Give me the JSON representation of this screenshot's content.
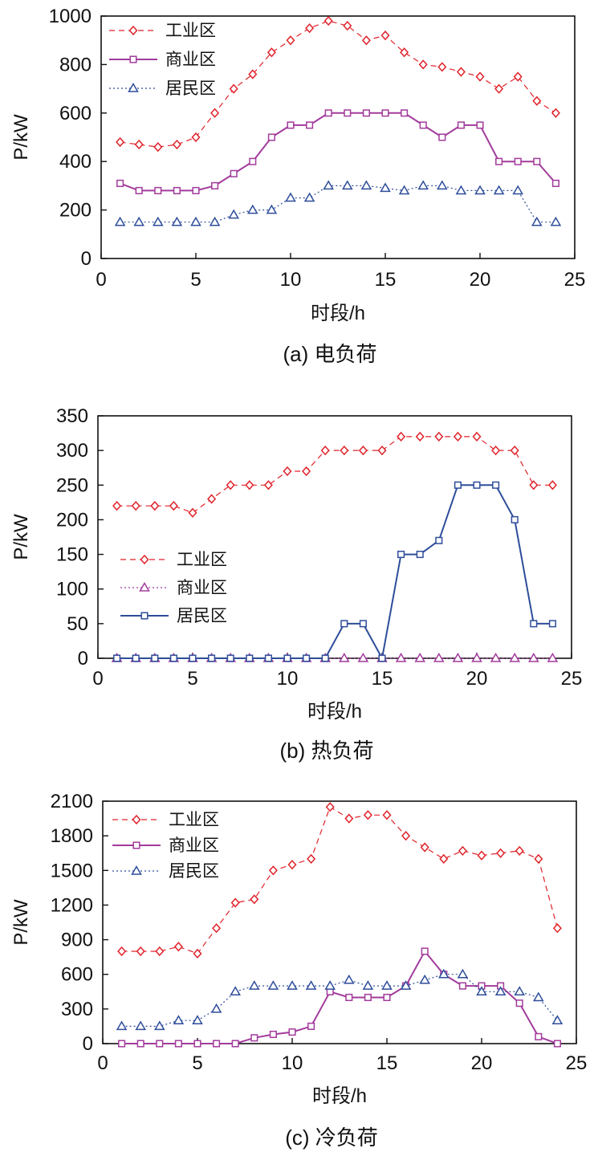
{
  "colors": {
    "industrial": "#e0222a",
    "commercial": "#a23b9c",
    "residential": "#2e4d9a",
    "axis": "#111111"
  },
  "chart_data": [
    {
      "type": "line",
      "caption": "(a) 电负荷",
      "xlabel": "时段/h",
      "ylabel": "P/kW",
      "xlim": [
        0,
        25
      ],
      "ylim": [
        0,
        1000
      ],
      "xticks": [
        0,
        5,
        10,
        15,
        20,
        25
      ],
      "yticks": [
        0,
        200,
        400,
        600,
        800,
        1000
      ],
      "legend_position": "top-left",
      "x": [
        1,
        2,
        3,
        4,
        5,
        6,
        7,
        8,
        9,
        10,
        11,
        12,
        13,
        14,
        15,
        16,
        17,
        18,
        19,
        20,
        21,
        22,
        23,
        24
      ],
      "series": [
        {
          "name": "工业区",
          "key": "industrial",
          "marker": "diamond",
          "line": "dashed",
          "values": [
            480,
            470,
            460,
            470,
            500,
            600,
            700,
            760,
            850,
            900,
            950,
            980,
            960,
            900,
            920,
            850,
            800,
            790,
            770,
            750,
            700,
            750,
            650,
            600
          ]
        },
        {
          "name": "商业区",
          "key": "commercial",
          "marker": "square",
          "line": "solid",
          "values": [
            310,
            280,
            280,
            280,
            280,
            300,
            350,
            400,
            500,
            550,
            550,
            600,
            600,
            600,
            600,
            600,
            550,
            500,
            550,
            550,
            400,
            400,
            400,
            310
          ]
        },
        {
          "name": "居民区",
          "key": "residential",
          "marker": "triangle",
          "line": "dotted",
          "values": [
            150,
            150,
            150,
            150,
            150,
            150,
            180,
            200,
            200,
            250,
            250,
            300,
            300,
            300,
            290,
            280,
            300,
            300,
            280,
            280,
            280,
            280,
            150,
            150
          ]
        }
      ]
    },
    {
      "type": "line",
      "caption": "(b) 热负荷",
      "xlabel": "时段/h",
      "ylabel": "P/kW",
      "xlim": [
        0,
        25
      ],
      "ylim": [
        0,
        350
      ],
      "xticks": [
        0,
        5,
        10,
        15,
        20,
        25
      ],
      "yticks": [
        0,
        50,
        100,
        150,
        200,
        250,
        300,
        350
      ],
      "legend_position": "middle-left",
      "x": [
        1,
        2,
        3,
        4,
        5,
        6,
        7,
        8,
        9,
        10,
        11,
        12,
        13,
        14,
        15,
        16,
        17,
        18,
        19,
        20,
        21,
        22,
        23,
        24
      ],
      "series": [
        {
          "name": "工业区",
          "key": "industrial",
          "marker": "diamond",
          "line": "dashed",
          "values": [
            220,
            220,
            220,
            220,
            210,
            230,
            250,
            250,
            250,
            270,
            270,
            300,
            300,
            300,
            300,
            320,
            320,
            320,
            320,
            320,
            300,
            300,
            250,
            250
          ]
        },
        {
          "name": "商业区",
          "key": "commercial",
          "marker": "triangle",
          "line": "dotted",
          "values": [
            0,
            0,
            0,
            0,
            0,
            0,
            0,
            0,
            0,
            0,
            0,
            0,
            0,
            0,
            0,
            0,
            0,
            0,
            0,
            0,
            0,
            0,
            0,
            0
          ]
        },
        {
          "name": "居民区",
          "key": "residential",
          "marker": "square",
          "line": "solid",
          "values": [
            0,
            0,
            0,
            0,
            0,
            0,
            0,
            0,
            0,
            0,
            0,
            0,
            50,
            50,
            0,
            150,
            150,
            170,
            250,
            250,
            250,
            200,
            50,
            50
          ]
        }
      ]
    },
    {
      "type": "line",
      "caption": "(c) 冷负荷",
      "xlabel": "时段/h",
      "ylabel": "P/kW",
      "xlim": [
        0,
        25
      ],
      "ylim": [
        0,
        2100
      ],
      "xticks": [
        0,
        5,
        10,
        15,
        20,
        25
      ],
      "yticks": [
        0,
        300,
        600,
        900,
        1200,
        1500,
        1800,
        2100
      ],
      "legend_position": "top-left",
      "x": [
        1,
        2,
        3,
        4,
        5,
        6,
        7,
        8,
        9,
        10,
        11,
        12,
        13,
        14,
        15,
        16,
        17,
        18,
        19,
        20,
        21,
        22,
        23,
        24
      ],
      "series": [
        {
          "name": "工业区",
          "key": "industrial",
          "marker": "diamond",
          "line": "dashed",
          "values": [
            800,
            800,
            800,
            840,
            780,
            1000,
            1220,
            1250,
            1500,
            1550,
            1600,
            2050,
            1950,
            1980,
            1980,
            1800,
            1700,
            1600,
            1670,
            1630,
            1650,
            1670,
            1600,
            1000
          ]
        },
        {
          "name": "商业区",
          "key": "commercial",
          "marker": "square",
          "line": "solid",
          "values": [
            0,
            0,
            0,
            0,
            0,
            0,
            0,
            50,
            80,
            100,
            150,
            450,
            400,
            400,
            400,
            500,
            800,
            600,
            500,
            500,
            500,
            350,
            60,
            0
          ]
        },
        {
          "name": "居民区",
          "key": "residential",
          "marker": "triangle",
          "line": "dotted",
          "values": [
            150,
            150,
            150,
            200,
            200,
            300,
            450,
            500,
            500,
            500,
            500,
            500,
            550,
            500,
            500,
            500,
            550,
            600,
            600,
            450,
            450,
            450,
            400,
            200
          ]
        }
      ]
    }
  ]
}
